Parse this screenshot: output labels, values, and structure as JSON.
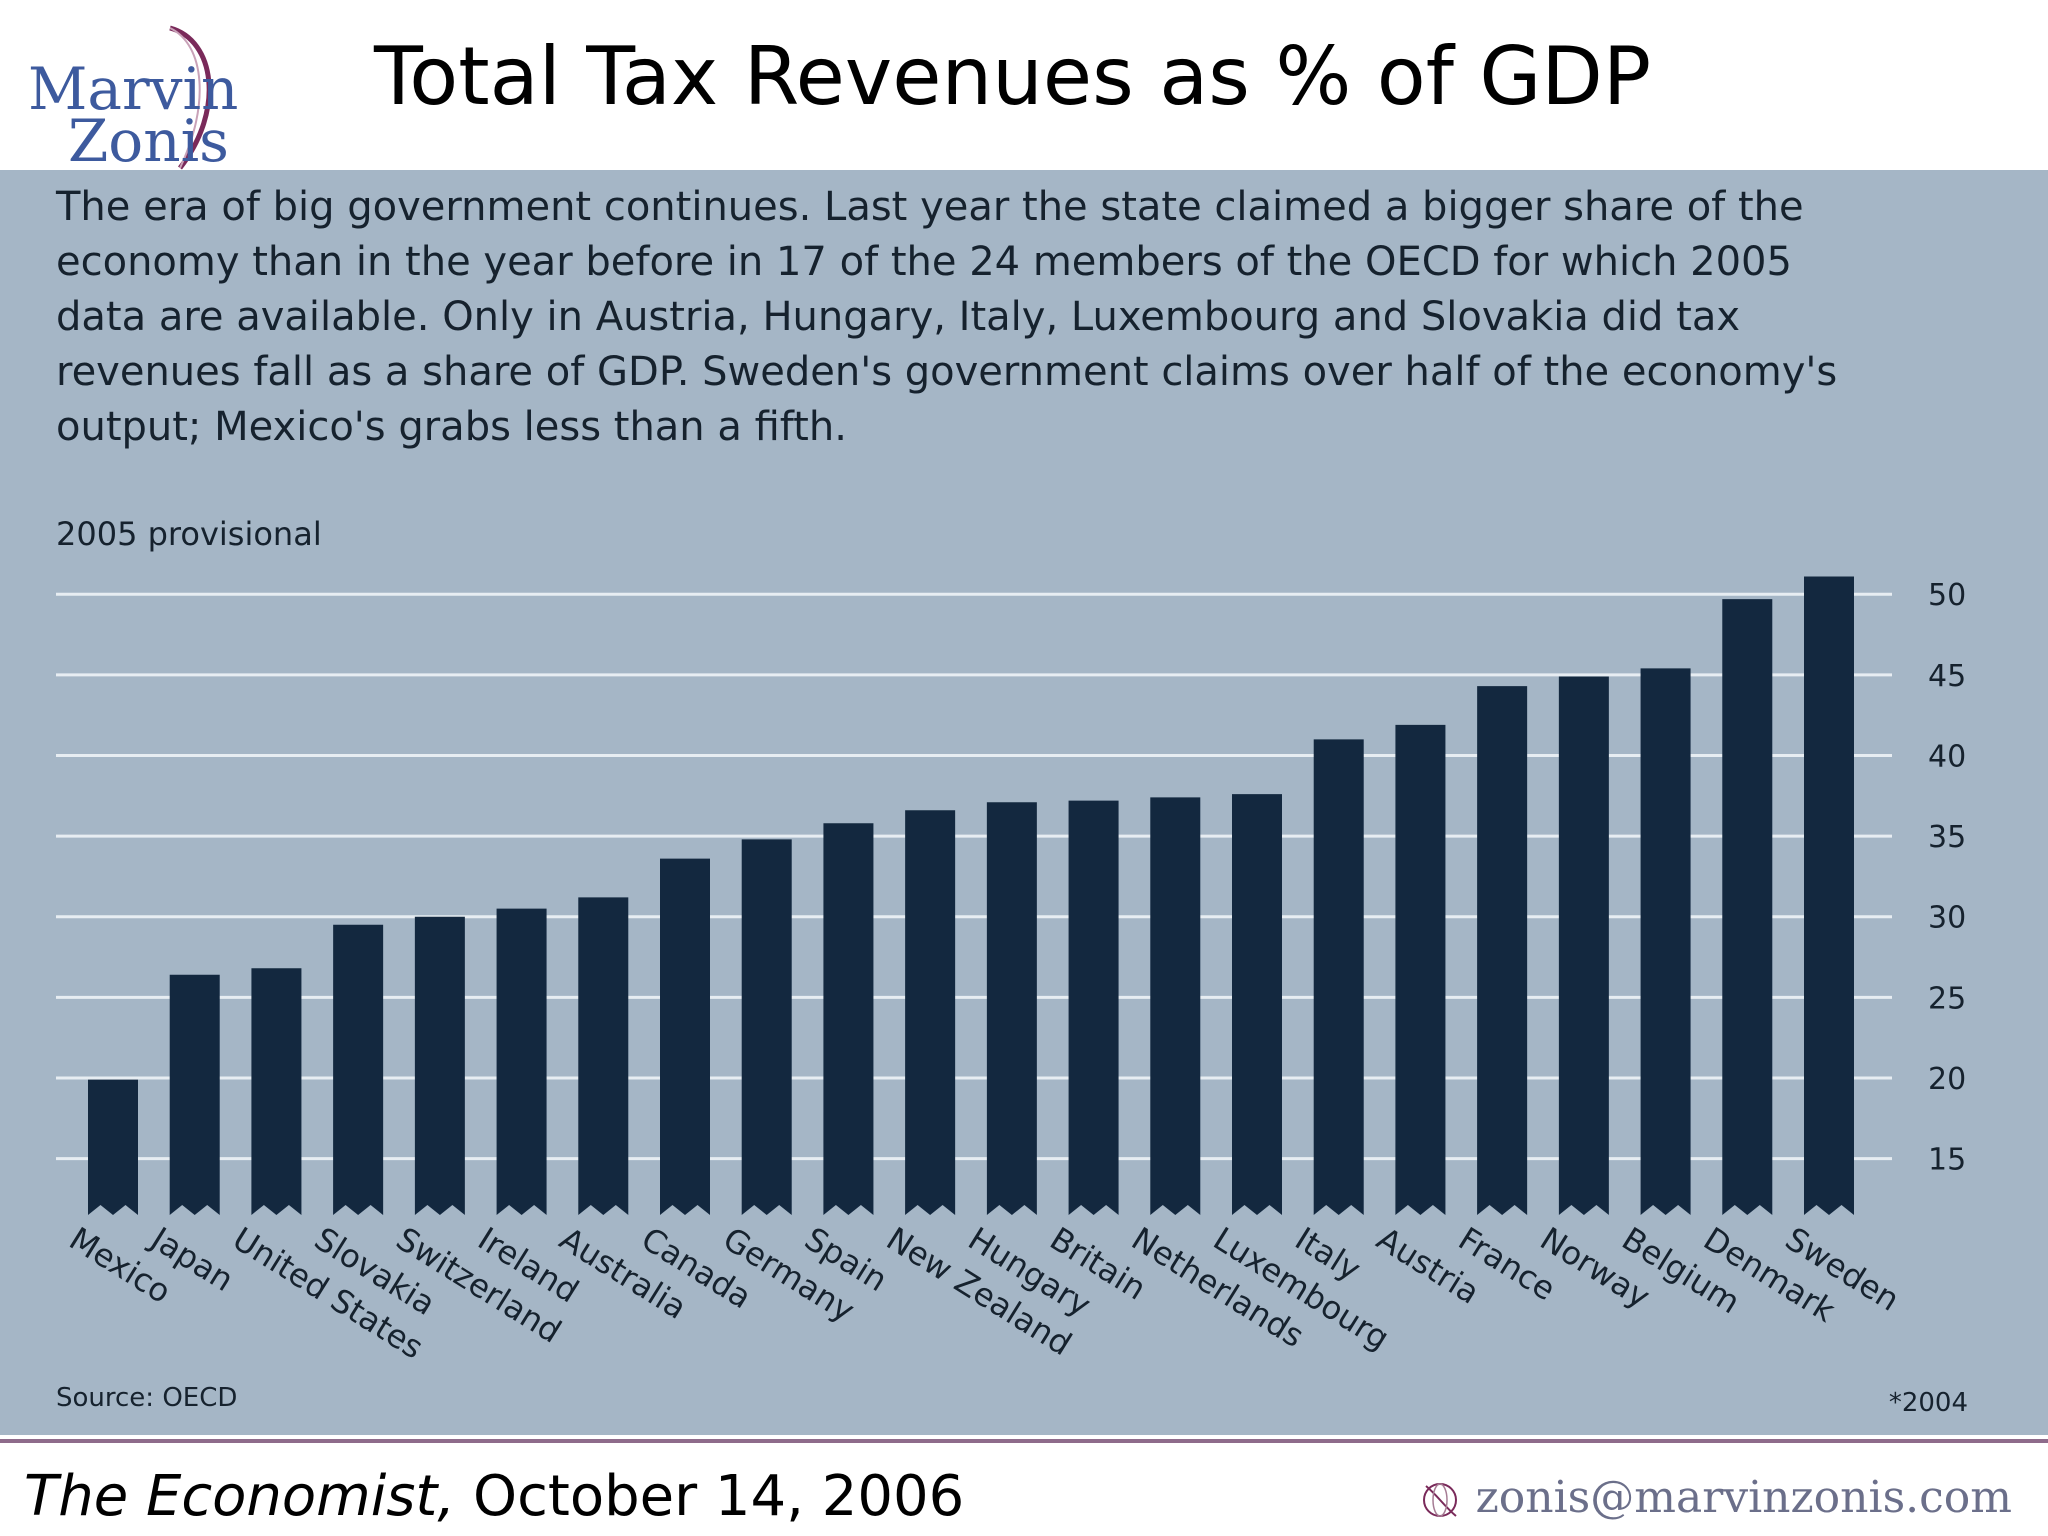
{
  "logo": {
    "line1": "Marvin",
    "line2": "Zonis"
  },
  "slide_title": "Total Tax Revenues as % of GDP",
  "intro_text": "The era of big government continues. Last year the state claimed a bigger share of the\neconomy than in the year before in 17 of the 24 members of the OECD for which 2005\ndata are available. Only in Austria, Hungary, Italy, Luxembourg and Slovakia did tax\nrevenues fall as a share of GDP. Sweden's government claims over half of the economy's\noutput; Mexico's grabs less than a fifth.",
  "subtitle": "2005 provisional",
  "source": "Source: OECD",
  "footnote": "*2004",
  "citation": {
    "publication": "The Economist,",
    "date": " October 14, 2006"
  },
  "email": "zonis@marvinzonis.com",
  "colors": {
    "bar": "#13283f",
    "panel": "#a5b6c6",
    "grid": "#e7edf2",
    "divider": "#8e6b8b",
    "logo": "#3d5a9e"
  },
  "chart_data": {
    "type": "bar",
    "title": "Total Tax Revenues as % of GDP",
    "subtitle": "2005 provisional",
    "categories": [
      "Mexico",
      "Japan",
      "United States",
      "Slovakia",
      "Switzerland",
      "Ireland",
      "Australia",
      "Canada",
      "Germany",
      "Spain",
      "New Zealand",
      "Hungary",
      "Britain",
      "Netherlands",
      "Luxembourg",
      "Italy",
      "Austria",
      "France",
      "Norway",
      "Belgium",
      "Denmark",
      "Sweden"
    ],
    "values": [
      19.9,
      26.4,
      26.8,
      29.5,
      30.0,
      30.5,
      31.2,
      33.6,
      34.8,
      35.8,
      36.6,
      37.1,
      37.2,
      37.4,
      37.6,
      41.0,
      41.9,
      44.3,
      44.9,
      45.4,
      49.7,
      51.1
    ],
    "yticks": [
      15,
      20,
      25,
      30,
      35,
      40,
      45,
      50
    ],
    "ylim": [
      11.5,
      52
    ],
    "axis_side": "right",
    "xlabel": "",
    "ylabel": ""
  }
}
